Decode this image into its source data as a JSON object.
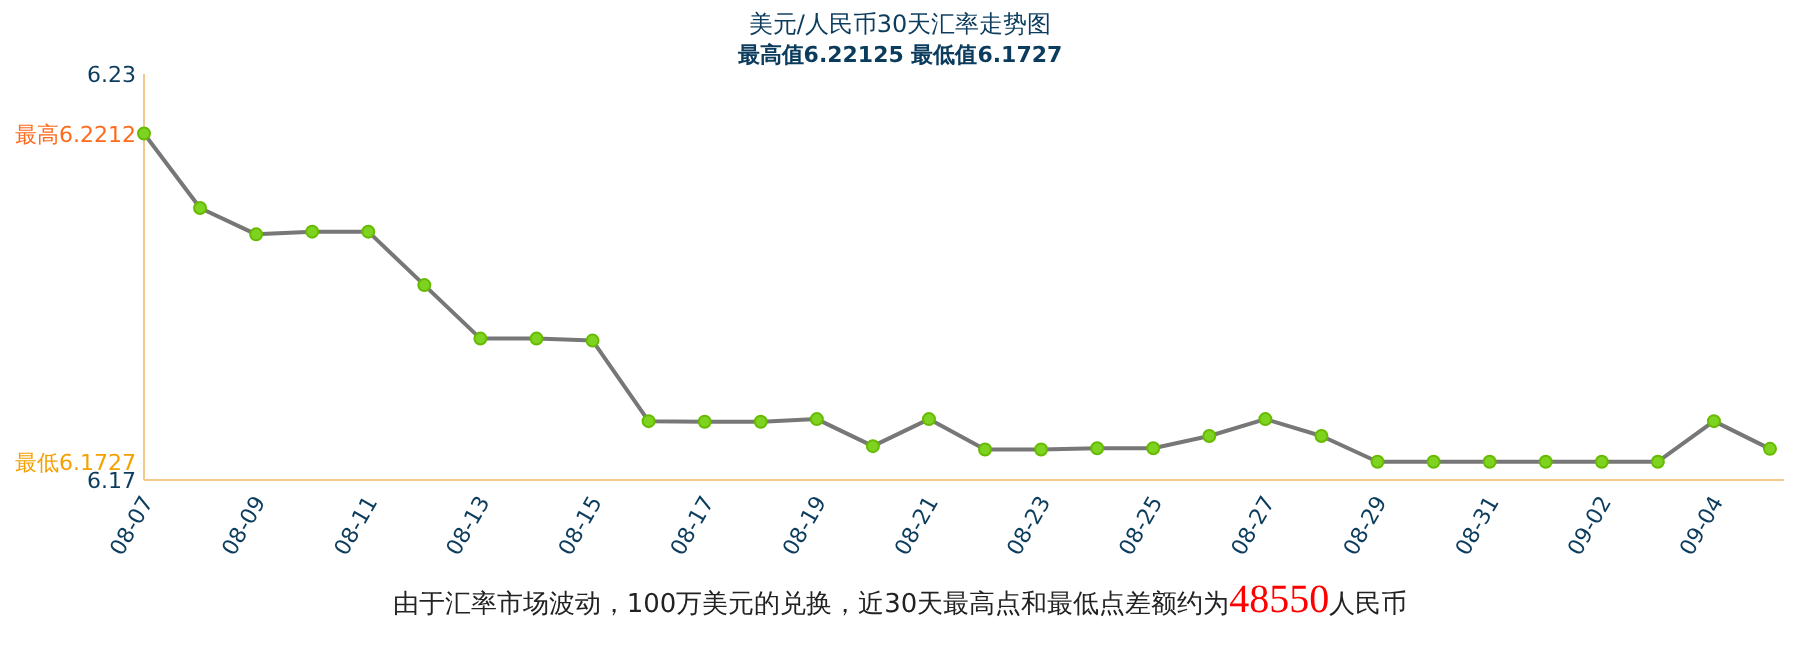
{
  "chart_data": {
    "type": "line",
    "title": "美元/人民币30天汇率走势图",
    "subtitle": "最高值6.22125 最低值6.1727",
    "categories": [
      "08-07",
      null,
      "08-09",
      null,
      "08-11",
      null,
      "08-13",
      null,
      "08-15",
      null,
      "08-17",
      null,
      "08-19",
      null,
      "08-21",
      null,
      "08-23",
      null,
      "08-25",
      null,
      "08-27",
      null,
      "08-29",
      null,
      "08-31",
      null,
      "09-02",
      null,
      "09-04",
      null
    ],
    "series": [
      {
        "color": "#777777",
        "values": [
          6.2212,
          6.2102,
          6.2063,
          6.2067,
          6.2067,
          6.1988,
          6.1909,
          6.1909,
          6.1906,
          6.1787,
          6.1786,
          6.1786,
          6.179,
          6.175,
          6.179,
          6.1745,
          6.1745,
          6.1747,
          6.1747,
          6.1765,
          6.179,
          6.1765,
          6.1727,
          6.1727,
          6.1727,
          6.1727,
          6.1727,
          6.1727,
          6.1787,
          6.1746
        ]
      }
    ],
    "ylim": [
      6.17,
      6.23
    ],
    "yticks": [
      6.23,
      {
        "value": 6.2212,
        "label": "最高6.2212"
      },
      {
        "value": 6.1727,
        "label": "最低6.1727"
      },
      6.17
    ],
    "marker": "circle",
    "grid": false,
    "annotations": [
      "由于汇率市场波动，100万美元的兑换，近30天最高点和最低点差额约为48550人民币"
    ]
  }
}
